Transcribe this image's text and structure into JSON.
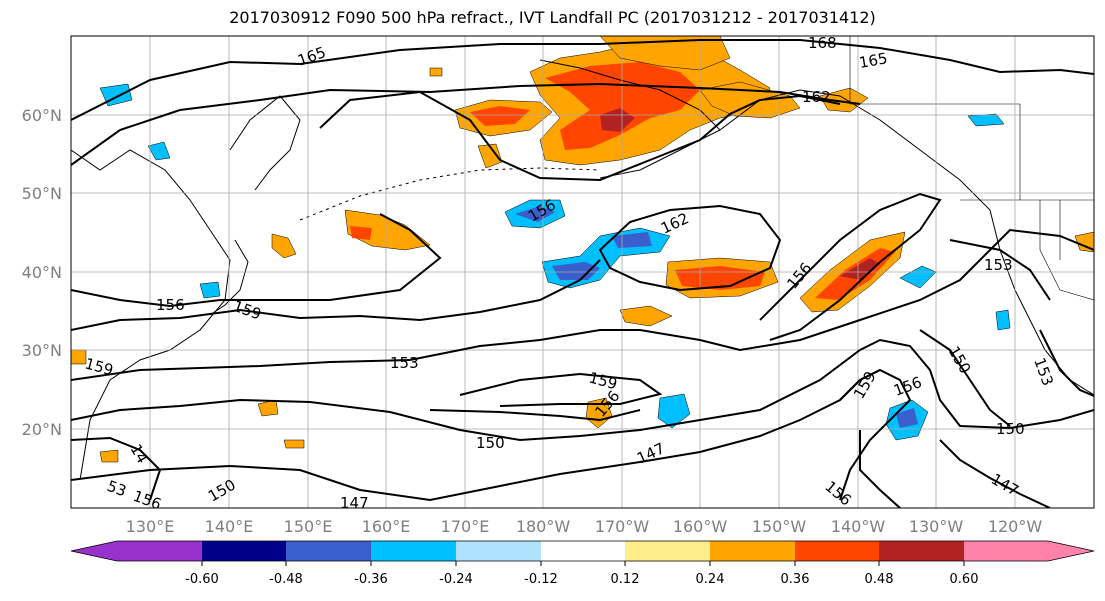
{
  "title": "2017030912 F090 500 hPa refract., IVT Landfall PC (2017031212 - 2017031412)",
  "lon_ticks": [
    "130°E",
    "140°E",
    "150°E",
    "160°E",
    "170°E",
    "180°W",
    "170°W",
    "160°W",
    "150°W",
    "140°W",
    "130°W",
    "120°W"
  ],
  "lat_ticks": [
    "60°N",
    "50°N",
    "40°N",
    "30°N",
    "20°N"
  ],
  "contour_labels": [
    "165",
    "168",
    "165",
    "162",
    "156",
    "162",
    "156",
    "153",
    "156",
    "159",
    "153",
    "159",
    "159",
    "156",
    "150",
    "159",
    "156",
    "150",
    "150",
    "147",
    "156",
    "147",
    "150",
    "147",
    "153",
    "156",
    "14",
    "53"
  ],
  "colorbar": {
    "tick_labels": [
      "-0.60",
      "-0.48",
      "-0.36",
      "-0.24",
      "-0.12",
      "0.12",
      "0.24",
      "0.36",
      "0.48",
      "0.60"
    ],
    "colors": [
      "#9932cc",
      "#00008b",
      "#3a5fcd",
      "#00bfff",
      "#b0e2ff",
      "#ffffff",
      "#ffec8b",
      "#ffa500",
      "#ff4500",
      "#b22222",
      "#ff82ab"
    ]
  },
  "colors": {
    "contour": "#000000",
    "coast": "#000000",
    "grid": "#a9a9a9"
  }
}
